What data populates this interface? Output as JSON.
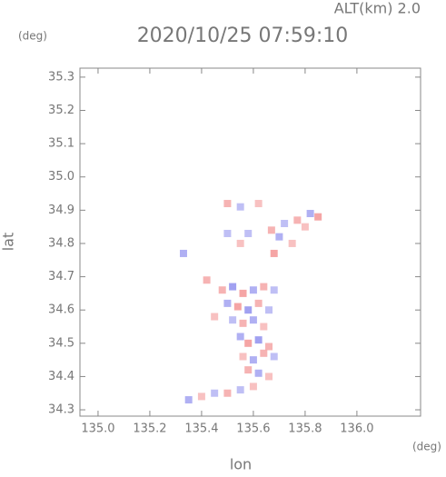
{
  "chart_data": {
    "type": "scatter",
    "title": "2020/10/25 07:59:10",
    "subtitle": "ALT(km) 2.0",
    "y_unit": "(deg)",
    "x_unit": "(deg)",
    "xlabel": "lon",
    "ylabel": "lat",
    "xlim": [
      134.93,
      136.246
    ],
    "ylim": [
      34.281,
      35.327
    ],
    "xticks": [
      {
        "value": 135.0,
        "label": "135.0"
      },
      135.2,
      135.4,
      135.6,
      135.8,
      {
        "value": 136.0,
        "label": "136.0"
      }
    ],
    "yticks": [
      34.3,
      34.4,
      34.5,
      34.6,
      34.7,
      34.8,
      34.9,
      {
        "value": 35.0,
        "label": "35.0"
      },
      35.1,
      35.2,
      35.3
    ],
    "positive_color": "#f4a0a0",
    "negative_color": "#9c9cf0",
    "x": [
      135.5,
      135.55,
      135.62,
      135.77,
      135.82,
      135.85,
      135.72,
      135.8,
      135.67,
      135.7,
      135.75,
      135.68,
      135.5,
      135.55,
      135.58,
      135.33,
      135.42,
      135.48,
      135.52,
      135.56,
      135.6,
      135.64,
      135.68,
      135.5,
      135.54,
      135.58,
      135.62,
      135.66,
      135.45,
      135.52,
      135.56,
      135.6,
      135.64,
      135.55,
      135.58,
      135.62,
      135.66,
      135.56,
      135.6,
      135.64,
      135.68,
      135.58,
      135.62,
      135.66,
      135.35,
      135.4,
      135.45,
      135.5,
      135.55,
      135.6
    ],
    "y": [
      34.92,
      34.91,
      34.92,
      34.87,
      34.89,
      34.88,
      34.86,
      34.85,
      34.84,
      34.82,
      34.8,
      34.77,
      34.83,
      34.8,
      34.83,
      34.77,
      34.69,
      34.66,
      34.67,
      34.65,
      34.66,
      34.67,
      34.66,
      34.62,
      34.61,
      34.6,
      34.62,
      34.6,
      34.58,
      34.57,
      34.56,
      34.57,
      34.55,
      34.52,
      34.5,
      34.51,
      34.49,
      34.46,
      34.45,
      34.47,
      34.46,
      34.42,
      34.41,
      34.4,
      34.33,
      34.34,
      34.35,
      34.35,
      34.36,
      34.37
    ],
    "values": [
      2,
      -1,
      1,
      2,
      -2,
      3,
      -1,
      1,
      2,
      -2,
      1,
      3,
      -1,
      1,
      -1,
      -2,
      2,
      2,
      -3,
      3,
      -2,
      2,
      -1,
      -2,
      3,
      -3,
      2,
      -1,
      1,
      -1,
      2,
      -2,
      1,
      -2,
      3,
      -3,
      2,
      1,
      -2,
      2,
      -1,
      2,
      -2,
      1,
      -2,
      1,
      -1,
      2,
      -1,
      1
    ]
  }
}
